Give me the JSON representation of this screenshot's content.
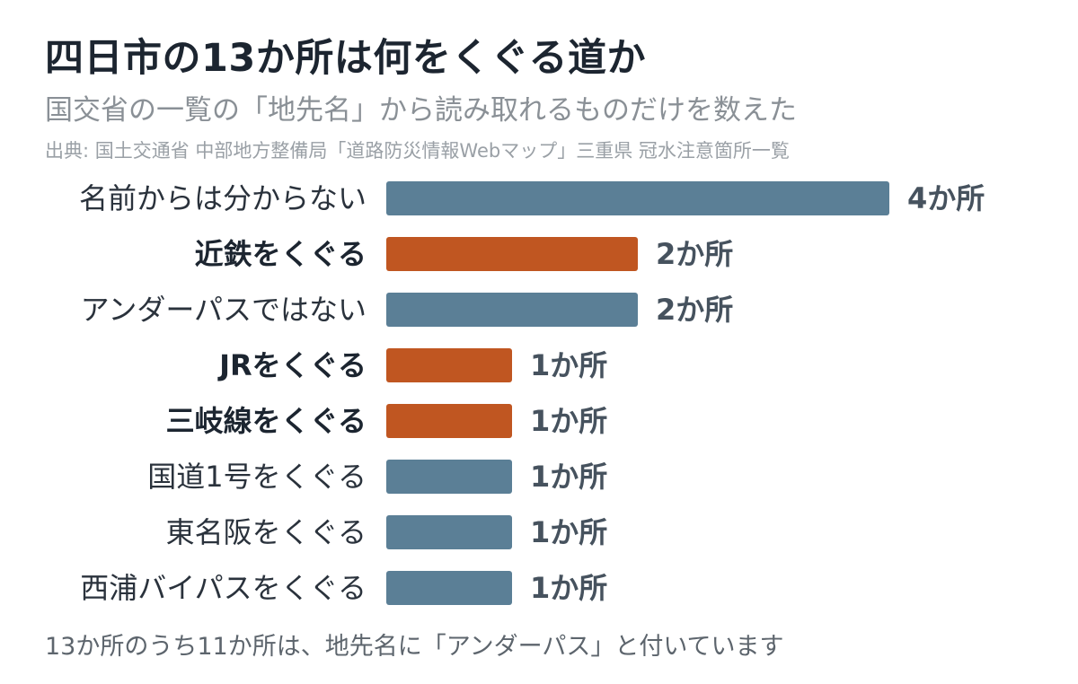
{
  "title": "四日市の13か所は何をくぐる道か",
  "subtitle": "国交省の一覧の「地先名」から読み取れるものだけを数えた",
  "source": "出典: 国土交通省 中部地方整備局「道路防災情報Webマップ」三重県 冠水注意箇所一覧",
  "footnote": "13か所のうち11か所は、地先名に「アンダーパス」と付いています",
  "colors": {
    "rail": "#c05621",
    "other": "#5b7f96"
  },
  "chart_data": {
    "type": "bar",
    "orientation": "horizontal",
    "unit": "か所",
    "categories": [
      "名前からは分からない",
      "近鉄をくぐる",
      "アンダーパスではない",
      "JRをくぐる",
      "三岐線をくぐる",
      "国道1号をくぐる",
      "東名阪をくぐる",
      "西浦バイパスをくぐる"
    ],
    "values": [
      4,
      2,
      2,
      1,
      1,
      1,
      1,
      1
    ],
    "value_labels": [
      "4か所",
      "2か所",
      "2か所",
      "1か所",
      "1か所",
      "1か所",
      "1か所",
      "1か所"
    ],
    "highlight": [
      false,
      true,
      false,
      true,
      true,
      false,
      false,
      false
    ],
    "xlim": [
      0,
      4
    ]
  }
}
